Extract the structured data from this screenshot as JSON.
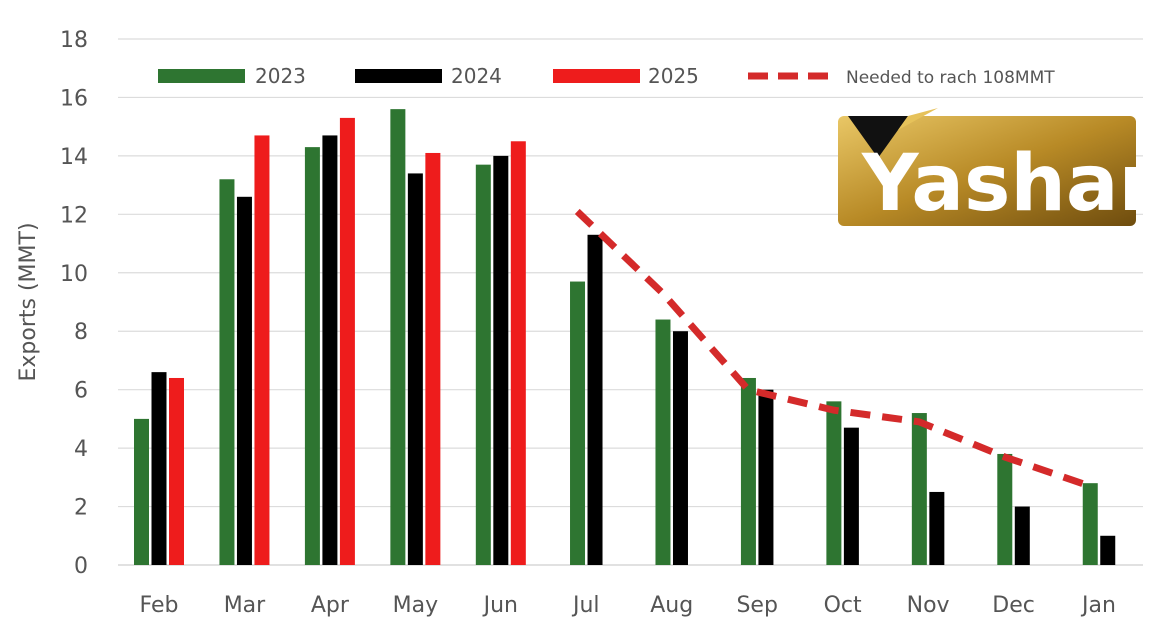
{
  "chart_data": {
    "type": "bar",
    "title": "",
    "xlabel": "",
    "ylabel": "Exports (MMT)",
    "ylim": [
      0,
      18
    ],
    "yticks": [
      0,
      2,
      4,
      6,
      8,
      10,
      12,
      14,
      16,
      18
    ],
    "grid": true,
    "legend_position": "top",
    "categories": [
      "Feb",
      "Mar",
      "Apr",
      "May",
      "Jun",
      "Jul",
      "Aug",
      "Sep",
      "Oct",
      "Nov",
      "Dec",
      "Jan"
    ],
    "series": [
      {
        "name": "2023",
        "kind": "bar",
        "color": "#2e7531",
        "values": [
          5.0,
          13.2,
          14.3,
          15.6,
          13.7,
          9.7,
          8.4,
          6.4,
          5.6,
          5.2,
          3.8,
          2.8
        ]
      },
      {
        "name": "2024",
        "kind": "bar",
        "color": "#000000",
        "values": [
          6.6,
          12.6,
          14.7,
          13.4,
          14.0,
          11.3,
          8.0,
          6.0,
          4.7,
          2.5,
          2.0,
          1.0
        ]
      },
      {
        "name": "2025",
        "kind": "bar",
        "color": "#ee1c1c",
        "values": [
          6.4,
          14.7,
          15.3,
          14.1,
          14.5,
          null,
          null,
          null,
          null,
          null,
          null,
          null
        ]
      },
      {
        "name": "Needed to rach 108MMT",
        "kind": "dashed-line",
        "color": "#d42a2a",
        "values": [
          null,
          null,
          null,
          null,
          null,
          12.1,
          9.3,
          6.0,
          5.3,
          4.9,
          3.7,
          2.7
        ]
      }
    ]
  },
  "logo": {
    "text": "Yashar",
    "colors": {
      "gold": "#c9a03c",
      "dark": "#7a5a12",
      "mark": "#111111"
    }
  }
}
